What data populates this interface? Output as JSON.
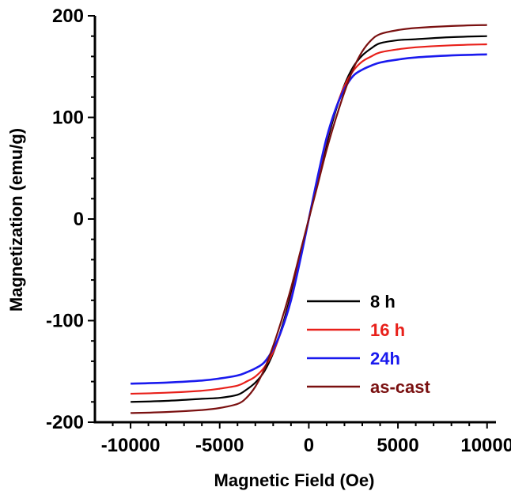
{
  "chart_data": {
    "type": "line",
    "title": "",
    "xlabel": "Magnetic Field (Oe)",
    "ylabel": "Magnetization (emu/g)",
    "xlim": [
      -12000,
      10500
    ],
    "ylim": [
      -200,
      200
    ],
    "xticks": [
      -10000,
      -5000,
      0,
      5000,
      10000
    ],
    "xtick_labels": [
      "-10000",
      "-5000",
      "0",
      "5000",
      "10000"
    ],
    "yticks": [
      -200,
      -100,
      0,
      100,
      200
    ],
    "ytick_labels": [
      "-200",
      "-100",
      "0",
      "100",
      "200"
    ],
    "grid": false,
    "legend_position": "bottom-right",
    "series": [
      {
        "name": "8 h",
        "color": "#000000",
        "x": [
          -10000,
          -8000,
          -6000,
          -5000,
          -4000,
          -3500,
          -3000,
          -2500,
          -2000,
          -1500,
          -1000,
          -500,
          0,
          500,
          1000,
          1500,
          2000,
          2500,
          3000,
          3500,
          4000,
          5000,
          6000,
          8000,
          10000
        ],
        "y": [
          -180,
          -179,
          -177,
          -176,
          -173,
          -168,
          -161,
          -150,
          -132,
          -106,
          -74,
          -38,
          0,
          38,
          74,
          106,
          132,
          150,
          161,
          168,
          173,
          176,
          177,
          179,
          180
        ]
      },
      {
        "name": "16 h",
        "color": "#e8201a",
        "x": [
          -10000,
          -8000,
          -6000,
          -5000,
          -4000,
          -3500,
          -3000,
          -2500,
          -2000,
          -1500,
          -1000,
          -500,
          0,
          500,
          1000,
          1500,
          2000,
          2500,
          3000,
          3500,
          4000,
          5000,
          6000,
          8000,
          10000
        ],
        "y": [
          -172,
          -171,
          -169,
          -167,
          -164,
          -160,
          -155,
          -146,
          -131,
          -108,
          -78,
          -40,
          0,
          40,
          78,
          108,
          131,
          146,
          155,
          160,
          164,
          167,
          169,
          171,
          172
        ]
      },
      {
        "name": "24h",
        "color": "#1a1aee",
        "x": [
          -10000,
          -8000,
          -6000,
          -5000,
          -4000,
          -3500,
          -3000,
          -2500,
          -2000,
          -1500,
          -1000,
          -500,
          0,
          500,
          1000,
          1500,
          2000,
          2500,
          3000,
          3500,
          4000,
          5000,
          6000,
          8000,
          10000
        ],
        "y": [
          -162,
          -161,
          -159,
          -157,
          -154,
          -151,
          -147,
          -141,
          -128,
          -108,
          -80,
          -42,
          0,
          42,
          80,
          108,
          128,
          141,
          147,
          151,
          154,
          157,
          159,
          161,
          162
        ]
      },
      {
        "name": "as-cast",
        "color": "#7a1010",
        "x": [
          -10000,
          -8000,
          -6000,
          -5000,
          -4000,
          -3500,
          -3000,
          -2500,
          -2000,
          -1500,
          -1000,
          -500,
          0,
          500,
          1000,
          1500,
          2000,
          2500,
          3000,
          3500,
          4000,
          5000,
          6000,
          8000,
          10000
        ],
        "y": [
          -191,
          -190,
          -188,
          -186,
          -182,
          -176,
          -165,
          -148,
          -125,
          -98,
          -68,
          -34,
          0,
          34,
          68,
          98,
          125,
          148,
          165,
          176,
          182,
          186,
          188,
          190,
          191
        ]
      }
    ]
  }
}
